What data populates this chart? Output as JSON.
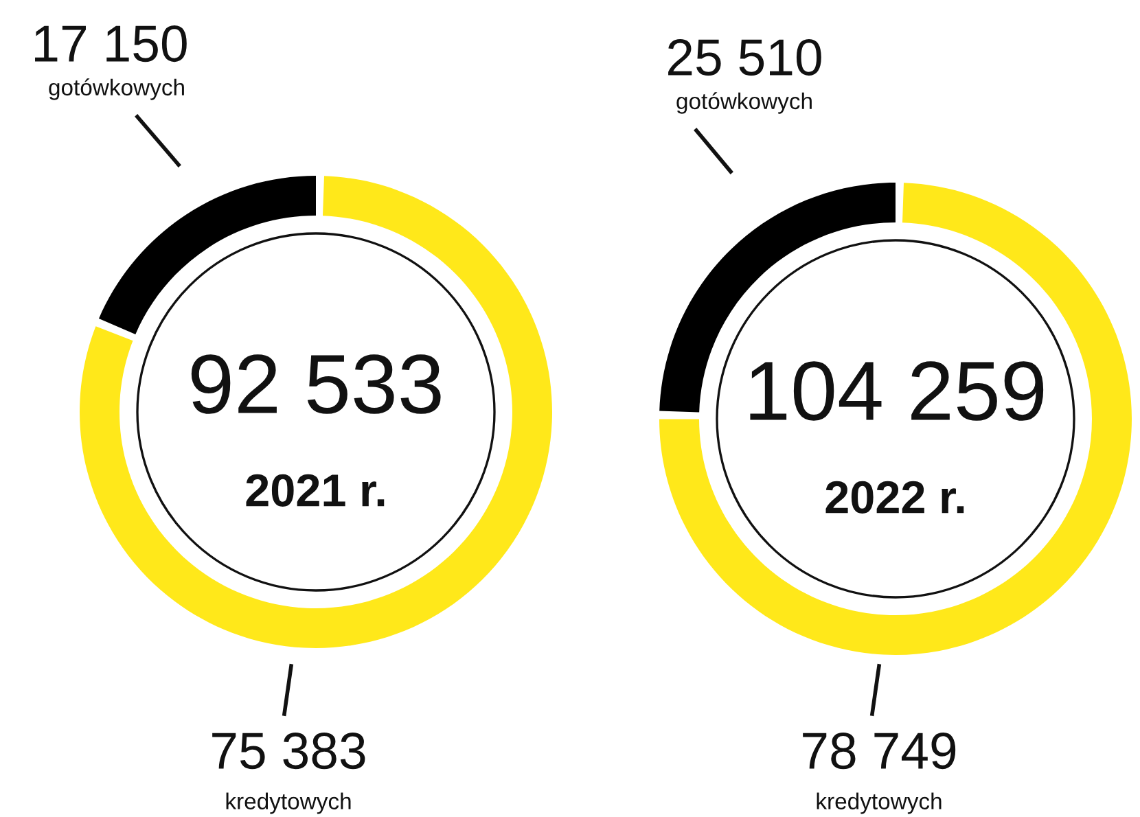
{
  "chart_data": [
    {
      "type": "donut",
      "title": "2021 r.",
      "annotations": [
        "92 533"
      ],
      "categories": [
        "gotówkowych",
        "kredytowych"
      ],
      "values": [
        17150,
        75383
      ],
      "value_labels": [
        "17 150",
        "75 383"
      ],
      "colors": [
        "#000000",
        "#ffe81a"
      ]
    },
    {
      "type": "donut",
      "title": "2022 r.",
      "annotations": [
        "104 259"
      ],
      "categories": [
        "gotówkowych",
        "kredytowych"
      ],
      "values": [
        25510,
        78749
      ],
      "value_labels": [
        "25 510",
        "78 749"
      ],
      "colors": [
        "#000000",
        "#ffe81a"
      ]
    }
  ]
}
